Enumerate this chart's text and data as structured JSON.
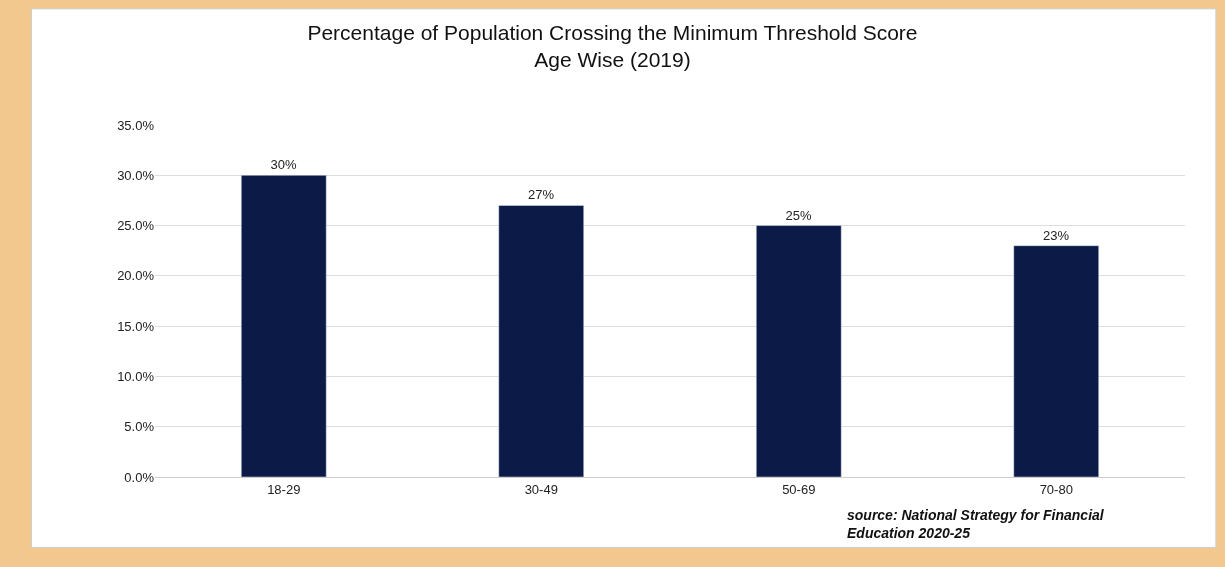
{
  "chart_data": {
    "type": "bar",
    "title": "Percentage of Population Crossing the Minimum Threshold Score\nAge Wise (2019)",
    "categories": [
      "18-29",
      "30-49",
      "50-69",
      "70-80"
    ],
    "values": [
      30,
      27,
      25,
      23
    ],
    "color": "#0b1a46",
    "value_labels": [
      "30%",
      "27%",
      "25%",
      "23%"
    ],
    "ylim": [
      0,
      35
    ],
    "yticks": [
      {
        "value": 0,
        "label": "0.0%"
      },
      {
        "value": 5,
        "label": "5.0%"
      },
      {
        "value": 10,
        "label": "10.0%"
      },
      {
        "value": 15,
        "label": "15.0%"
      },
      {
        "value": 20,
        "label": "20.0%"
      },
      {
        "value": 25,
        "label": "25.0%"
      },
      {
        "value": 30,
        "label": "30.0%"
      },
      {
        "value": 35,
        "label": "35.0%"
      }
    ],
    "grid": "y",
    "legend": false,
    "annotations": [
      "source: National Strategy for Financial\nEducation 2020-25"
    ]
  }
}
